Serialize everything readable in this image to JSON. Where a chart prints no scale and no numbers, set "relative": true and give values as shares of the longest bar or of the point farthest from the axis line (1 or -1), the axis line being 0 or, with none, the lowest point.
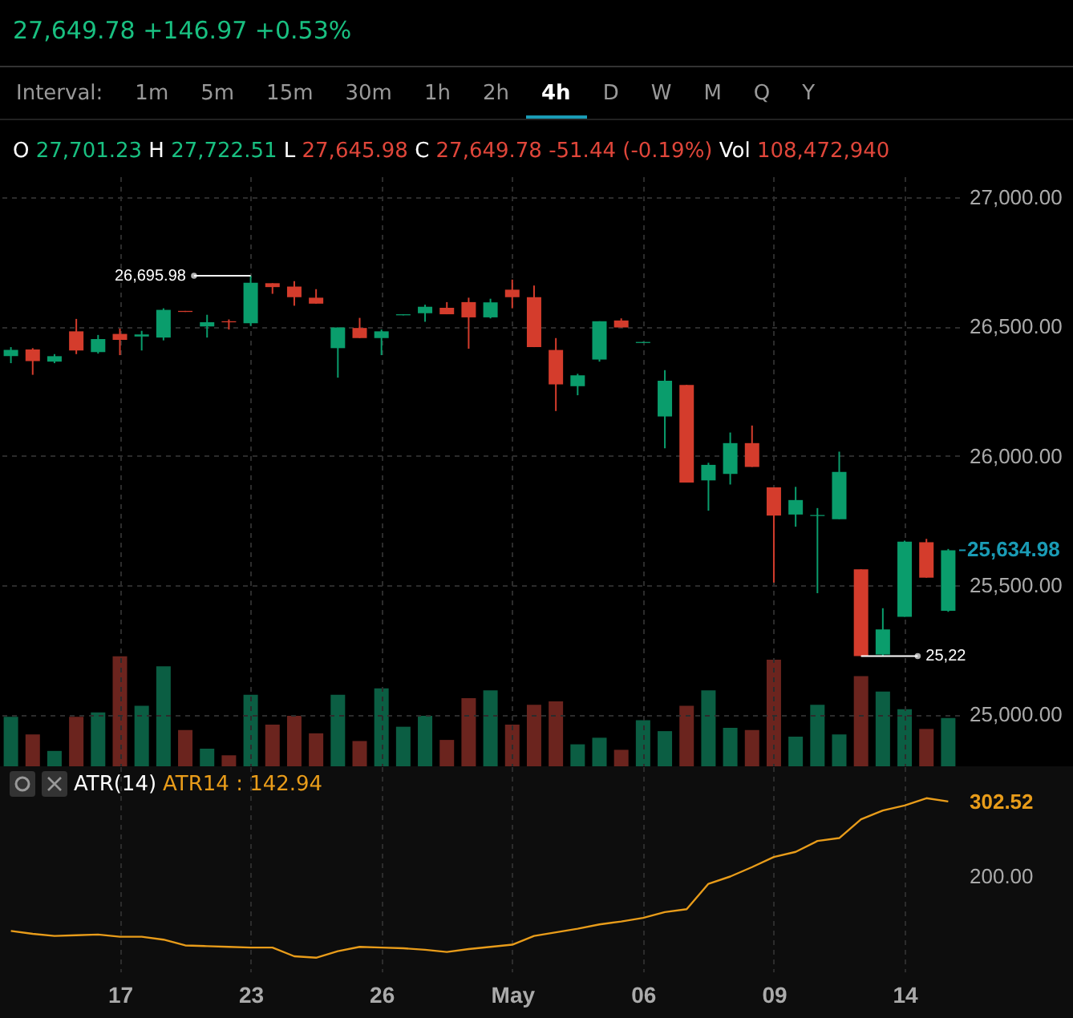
{
  "chart_data": [
    {
      "type": "candlestick",
      "title": "27,649.78 +146.97 +0.53%",
      "subtitle": "O 27,701.23 H 27,722.51 L 27,645.98 C 27,649.78 -51.44 (-0.19%) Vol 108,472,940",
      "annotations": [
        "Interval:",
        "1m",
        "5m",
        "15m",
        "30m",
        "1h",
        "2h",
        "4h",
        "D",
        "W",
        "M",
        "Q",
        "Y",
        "26,695.98",
        "25,22"
      ],
      "categories": [
        null,
        null,
        null,
        null,
        null,
        null,
        null,
        null,
        null,
        null,
        null,
        null,
        null,
        null,
        null,
        null,
        null,
        null,
        null,
        null,
        null,
        null,
        null,
        null,
        null,
        null,
        null,
        null,
        null,
        null,
        null,
        null,
        null,
        null,
        null,
        null,
        null,
        null,
        null,
        null,
        null,
        null,
        null,
        null
      ],
      "ohlc": [
        [
          26385,
          26420,
          26358,
          26409
        ],
        [
          26411,
          26416,
          26313,
          26366
        ],
        [
          26364,
          26393,
          26358,
          26385
        ],
        [
          26481,
          26529,
          26393,
          26407
        ],
        [
          26401,
          26467,
          26395,
          26451
        ],
        [
          26471,
          26492,
          26389,
          26448
        ],
        [
          26461,
          26483,
          26407,
          26469
        ],
        [
          26457,
          26570,
          26446,
          26564
        ],
        [
          26560,
          26560,
          26556,
          26556
        ],
        [
          26500,
          26545,
          26457,
          26516
        ],
        [
          26520,
          26527,
          26488,
          26516
        ],
        [
          26512,
          26695.98,
          26502,
          26669
        ],
        [
          26667,
          26667,
          26626,
          26652
        ],
        [
          26654,
          26675,
          26580,
          26613
        ],
        [
          26611,
          26644,
          26588,
          26588
        ],
        [
          26416,
          26496,
          26302,
          26496
        ],
        [
          26494,
          26533,
          26455,
          26455
        ],
        [
          26455,
          26488,
          26389,
          26481
        ],
        [
          26543,
          26547,
          26543,
          26547
        ],
        [
          26551,
          26584,
          26518,
          26576
        ],
        [
          26572,
          26594,
          26547,
          26547
        ],
        [
          26594,
          26611,
          26414,
          26535
        ],
        [
          26535,
          26607,
          26531,
          26593
        ],
        [
          26642,
          26681,
          26570,
          26613
        ],
        [
          26613,
          26658,
          26420,
          26420
        ],
        [
          26409,
          26455,
          26173,
          26276
        ],
        [
          26269,
          26317,
          26234,
          26311
        ],
        [
          26372,
          26520,
          26364,
          26520
        ],
        [
          26523,
          26531,
          26496,
          26496
        ],
        [
          26436,
          26440,
          26436,
          26440
        ],
        [
          26152,
          26331,
          26029,
          26290
        ],
        [
          26274,
          26274,
          25897,
          25897
        ],
        [
          25905,
          25973,
          25788,
          25965
        ],
        [
          25930,
          26090,
          25889,
          26049
        ],
        [
          26049,
          26117,
          25957,
          25957
        ],
        [
          25878,
          25878,
          25510,
          25769
        ],
        [
          25773,
          25880,
          25726,
          25829
        ],
        [
          25767,
          25798,
          25469,
          25771
        ],
        [
          25755,
          26016,
          25755,
          25938
        ],
        [
          25561,
          25561,
          25226,
          25226
        ],
        [
          25232,
          25411,
          25226,
          25329
        ],
        [
          25378,
          25672,
          25378,
          25668
        ],
        [
          25666,
          25679,
          25529,
          25529
        ],
        [
          25401,
          25640,
          25397,
          25634.98
        ]
      ],
      "colors": [
        "#0a9d6c",
        "#d43c2c",
        "#0a9d6c",
        "#d43c2c",
        "#0a9d6c",
        "#d43c2c",
        "#0a9d6c",
        "#0a9d6c",
        "#d43c2c",
        "#0a9d6c",
        "#d43c2c",
        "#0a9d6c",
        "#d43c2c",
        "#d43c2c",
        "#d43c2c",
        "#0a9d6c",
        "#d43c2c",
        "#0a9d6c",
        "#0a9d6c",
        "#0a9d6c",
        "#d43c2c",
        "#d43c2c",
        "#0a9d6c",
        "#d43c2c",
        "#d43c2c",
        "#d43c2c",
        "#0a9d6c",
        "#0a9d6c",
        "#d43c2c",
        "#0a9d6c",
        "#0a9d6c",
        "#d43c2c",
        "#0a9d6c",
        "#0a9d6c",
        "#d43c2c",
        "#d43c2c",
        "#0a9d6c",
        "#0a9d6c",
        "#0a9d6c",
        "#d43c2c",
        "#0a9d6c",
        "#0a9d6c",
        "#d43c2c",
        "#0a9d6c"
      ],
      "ylim": [
        24800,
        27080
      ],
      "yticks": [
        {
          "value": 25000,
          "label": "25,000.00"
        },
        {
          "value": 25500,
          "label": "25,500.00"
        },
        {
          "value": 26000,
          "label": "26,000.00"
        },
        {
          "value": 26500,
          "label": "26,500.00"
        },
        {
          "value": 27000,
          "label": "27,000.00"
        }
      ],
      "ref_lines": [
        {
          "axis": "y",
          "value": 25634.98,
          "label": "25,634.98",
          "color": "#1a9bb5"
        }
      ],
      "grid": true,
      "tick_labels": "y"
    },
    {
      "type": "bar",
      "relative": true,
      "categories": [
        null,
        null,
        null,
        null,
        null,
        null,
        null,
        null,
        null,
        null,
        null,
        null,
        null,
        null,
        null,
        null,
        null,
        null,
        null,
        null,
        null,
        null,
        null,
        null,
        null,
        null,
        null,
        null,
        null,
        null,
        null,
        null,
        null,
        null,
        null,
        null,
        null,
        null,
        null,
        null,
        null,
        null,
        null,
        null
      ],
      "values": [
        0.45,
        0.29,
        0.14,
        0.45,
        0.49,
        1,
        0.55,
        0.91,
        0.33,
        0.16,
        0.1,
        0.65,
        0.38,
        0.46,
        0.3,
        0.65,
        0.23,
        0.71,
        0.36,
        0.46,
        0.24,
        0.62,
        0.69,
        0.38,
        0.56,
        0.59,
        0.2,
        0.26,
        0.15,
        0.42,
        0.32,
        0.55,
        0.69,
        0.35,
        0.33,
        0.97,
        0.27,
        0.56,
        0.29,
        0.82,
        0.68,
        0.52,
        0.34,
        0.44
      ],
      "colors": [
        "#0b5e43",
        "#6b241e",
        "#0b5e43",
        "#6b241e",
        "#0b5e43",
        "#6b241e",
        "#0b5e43",
        "#0b5e43",
        "#6b241e",
        "#0b5e43",
        "#6b241e",
        "#0b5e43",
        "#6b241e",
        "#6b241e",
        "#6b241e",
        "#0b5e43",
        "#6b241e",
        "#0b5e43",
        "#0b5e43",
        "#0b5e43",
        "#6b241e",
        "#6b241e",
        "#0b5e43",
        "#6b241e",
        "#6b241e",
        "#6b241e",
        "#0b5e43",
        "#0b5e43",
        "#6b241e",
        "#0b5e43",
        "#0b5e43",
        "#6b241e",
        "#0b5e43",
        "#0b5e43",
        "#6b241e",
        "#6b241e",
        "#0b5e43",
        "#0b5e43",
        "#0b5e43",
        "#6b241e",
        "#0b5e43",
        "#0b5e43",
        "#6b241e",
        "#0b5e43"
      ],
      "tick_labels": false
    },
    {
      "type": "line",
      "title": "ATR(14)",
      "annotations": [
        "ATR14 : 142.94"
      ],
      "categories": [
        null,
        null,
        null,
        null,
        null,
        "17",
        null,
        null,
        null,
        null,
        null,
        "23",
        null,
        null,
        null,
        null,
        null,
        "26",
        null,
        null,
        null,
        null,
        null,
        "May",
        null,
        null,
        null,
        null,
        null,
        "06",
        null,
        null,
        null,
        null,
        null,
        "09",
        null,
        null,
        null,
        null,
        null,
        "14",
        null,
        null
      ],
      "series": [
        {
          "color": "#e89c1a",
          "values": [
            124,
            120,
            117,
            118,
            119,
            116,
            116,
            112,
            104,
            103,
            102,
            101,
            101,
            89,
            87,
            96,
            102,
            101,
            100,
            98,
            95,
            99,
            102,
            105,
            117,
            122,
            127,
            133,
            137,
            142,
            150,
            154,
            189,
            199,
            212,
            226,
            233,
            248,
            252,
            278,
            290,
            297,
            307,
            302.52
          ]
        }
      ],
      "ylim": [
        68,
        351
      ],
      "yticks": [
        {
          "value": 200,
          "label": "200.00"
        },
        {
          "value": 302.52,
          "label": "302.52"
        }
      ],
      "grid": "x"
    }
  ]
}
